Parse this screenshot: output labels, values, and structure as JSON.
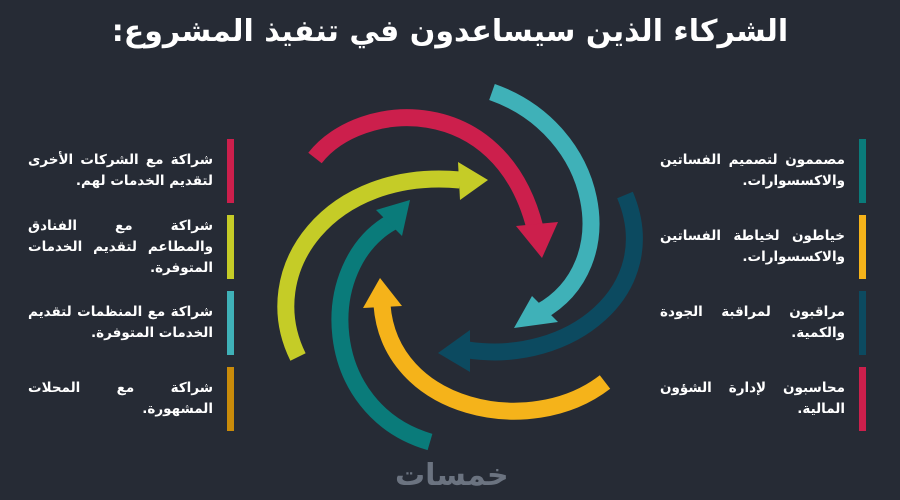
{
  "title": "الشركاء الذين سيساعدون في تنفيذ المشروع:",
  "left_items": [
    {
      "text": "شراكة مع الشركات الأخرى لتقديم الخدمات لهم.",
      "color": "#cc1f4c"
    },
    {
      "text": "شراكة مع الفنادق والمطاعم لتقديم الخدمات المتوفرة.",
      "color": "#c5cc27"
    },
    {
      "text": "شراكة مع المنظمات لتقديم الخدمات المتوفرة.",
      "color": "#3fb1b8"
    },
    {
      "text": "شراكة مع المحلات المشهورة.",
      "color": "#c98b0a"
    }
  ],
  "right_items": [
    {
      "text": "مصممون لتصميم الفساتين والاكسسوارات.",
      "color": "#0a7b7a"
    },
    {
      "text": "خياطون لخياطة الفساتين والاكسسوارات.",
      "color": "#f5b31a"
    },
    {
      "text": "مراقبون لمراقبة الجودة والكمية.",
      "color": "#0c4a60"
    },
    {
      "text": "محاسبون لإدارة الشؤون المالية.",
      "color": "#cc1f4c"
    }
  ],
  "arrow_colors": [
    "#cc1f4c",
    "#3fb1b8",
    "#0c4a60",
    "#f5b31a",
    "#0a7b7a",
    "#c5cc27"
  ],
  "logo": "خمسات"
}
